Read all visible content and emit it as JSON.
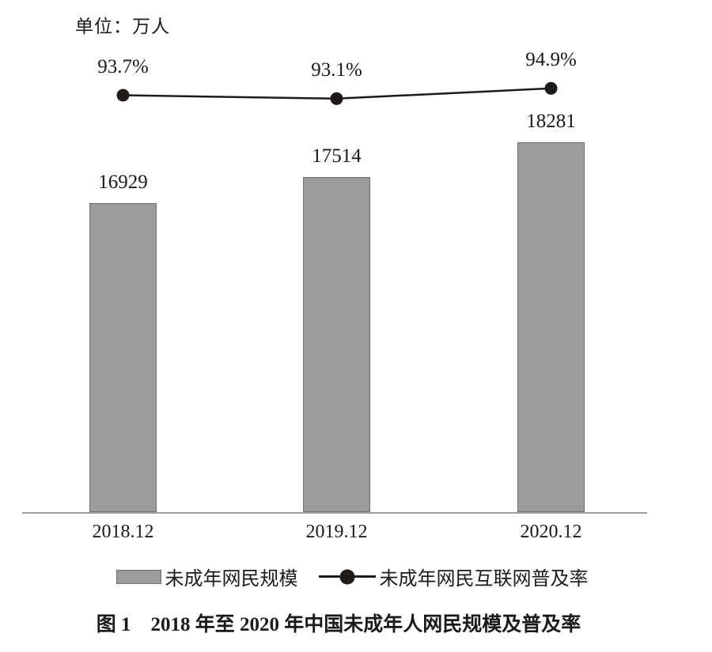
{
  "chart_data": {
    "type": "bar",
    "unit_label": "单位：万人",
    "categories": [
      "2018.12",
      "2019.12",
      "2020.12"
    ],
    "series": [
      {
        "name": "未成年网民规模",
        "type": "bar",
        "values": [
          16929,
          17514,
          18281
        ],
        "value_labels": [
          "16929",
          "17514",
          "18281"
        ]
      },
      {
        "name": "未成年网民互联网普及率",
        "type": "line",
        "values": [
          93.7,
          93.1,
          94.9
        ],
        "point_labels": [
          "93.7%",
          "93.1%",
          "94.9%"
        ]
      }
    ],
    "value_axis": {
      "label": "",
      "min": 10000,
      "max": 20500,
      "ticks_visible": false
    },
    "percent_axis": {
      "label": "",
      "min": 91,
      "max": 100,
      "ticks_visible": false
    },
    "grid": false,
    "legend_position": "bottom",
    "caption": "图 1　2018 年至 2020 年中国未成年人网民规模及普及率"
  },
  "colors": {
    "bar_fill": "#9c9c9c",
    "bar_border": "#6f6f6f",
    "line": "#1f1a17",
    "axis": "#9f9f9f",
    "text": "#1a1a1a",
    "background": "#ffffff"
  }
}
